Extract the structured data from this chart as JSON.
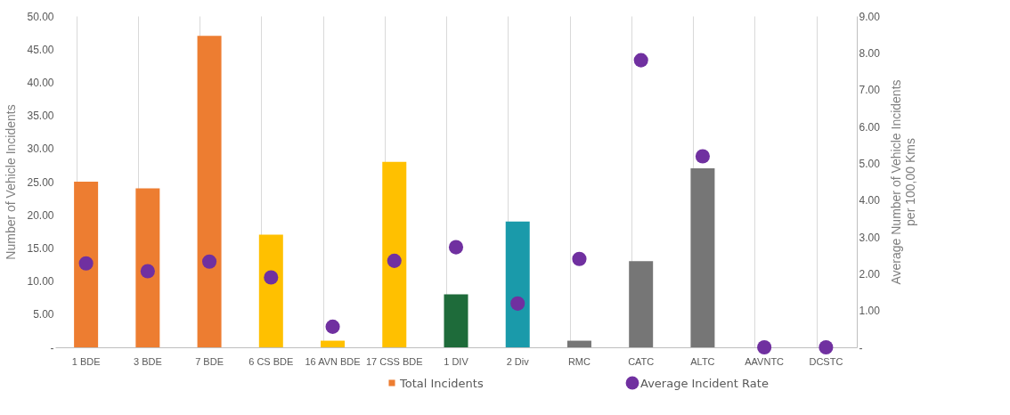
{
  "chart_data": {
    "type": "bar",
    "categories": [
      "1 BDE",
      "3 BDE",
      "7 BDE",
      "6 CS BDE",
      "16 AVN BDE",
      "17 CSS BDE",
      "1 DIV",
      "2 Div",
      "RMC",
      "CATC",
      "ALTC",
      "AAVNTC",
      "DCSTC"
    ],
    "series": [
      {
        "name": "Total Incidents",
        "colors": [
          "#ed7d31",
          "#ed7d31",
          "#ed7d31",
          "#ffc000",
          "#ffc000",
          "#ffc000",
          "#1e6b3a",
          "#1a9aaa",
          "#767676",
          "#767676",
          "#767676",
          "#767676",
          "#767676"
        ],
        "values": [
          25,
          24,
          47,
          17,
          1,
          28,
          8,
          19,
          1,
          13,
          27,
          0,
          0
        ]
      },
      {
        "name": "Average Incident Rate",
        "type": "scatter",
        "axis": "y2",
        "color": "#7030a0",
        "values": [
          2.28,
          2.07,
          2.33,
          1.9,
          0.56,
          2.35,
          2.72,
          1.19,
          2.4,
          7.8,
          5.19,
          0,
          0
        ]
      }
    ],
    "ylabel": "Number of Vehicle Incidents",
    "y2label": "Average Number of Vehicle Incidents\nper 100,00 Kms",
    "ylim": [
      0,
      50
    ],
    "yticks": [
      {
        "value": 0,
        "label": "-"
      },
      {
        "value": 5,
        "label": "5.00"
      },
      {
        "value": 10,
        "label": "10.00"
      },
      {
        "value": 15,
        "label": "15.00"
      },
      {
        "value": 20,
        "label": "20.00"
      },
      {
        "value": 25,
        "label": "25.00"
      },
      {
        "value": 30,
        "label": "30.00"
      },
      {
        "value": 35,
        "label": "35.00"
      },
      {
        "value": 40,
        "label": "40.00"
      },
      {
        "value": 45,
        "label": "45.00"
      },
      {
        "value": 50,
        "label": "50.00"
      }
    ],
    "y2lim": [
      0,
      9
    ],
    "y2ticks": [
      {
        "value": 0,
        "label": "-"
      },
      {
        "value": 1,
        "label": "1.00"
      },
      {
        "value": 2,
        "label": "2.00"
      },
      {
        "value": 3,
        "label": "3.00"
      },
      {
        "value": 4,
        "label": "4.00"
      },
      {
        "value": 5,
        "label": "5.00"
      },
      {
        "value": 6,
        "label": "6.00"
      },
      {
        "value": 7,
        "label": "7.00"
      },
      {
        "value": 8,
        "label": "8.00"
      },
      {
        "value": 9,
        "label": "9.00"
      }
    ],
    "grid": "x",
    "legend": "bottom",
    "marker": "circle"
  }
}
